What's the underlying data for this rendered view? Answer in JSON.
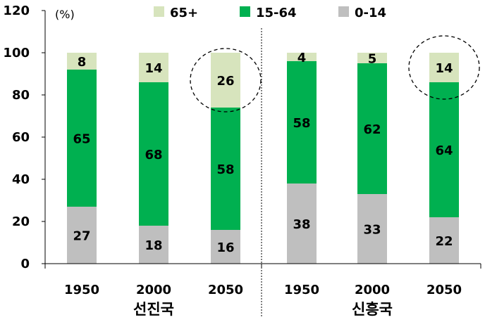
{
  "chart_data": {
    "type": "bar",
    "stacked": true,
    "unit_label": "(%)",
    "ylim": [
      0,
      120
    ],
    "yticks": [
      0,
      20,
      40,
      60,
      80,
      100,
      120
    ],
    "legend_position": "top",
    "groups": [
      {
        "label": "선진국",
        "categories": [
          "1950",
          "2000",
          "2050"
        ]
      },
      {
        "label": "신흥국",
        "categories": [
          "1950",
          "2000",
          "2050"
        ]
      }
    ],
    "categories": [
      "1950",
      "2000",
      "2050",
      "1950",
      "2000",
      "2050"
    ],
    "series": [
      {
        "name": "0-14",
        "color": "#bfbfbf",
        "values": [
          27,
          18,
          16,
          38,
          33,
          22
        ]
      },
      {
        "name": "15-64",
        "color": "#00b050",
        "values": [
          65,
          68,
          58,
          58,
          62,
          64
        ]
      },
      {
        "name": "65+",
        "color": "#d7e4bd",
        "values": [
          8,
          14,
          26,
          4,
          5,
          14
        ]
      }
    ],
    "legend_order": [
      "65+",
      "15-64",
      "0-14"
    ],
    "highlighted": [
      {
        "category_index": 2,
        "series": "65+"
      },
      {
        "category_index": 5,
        "series": "65+"
      }
    ]
  }
}
